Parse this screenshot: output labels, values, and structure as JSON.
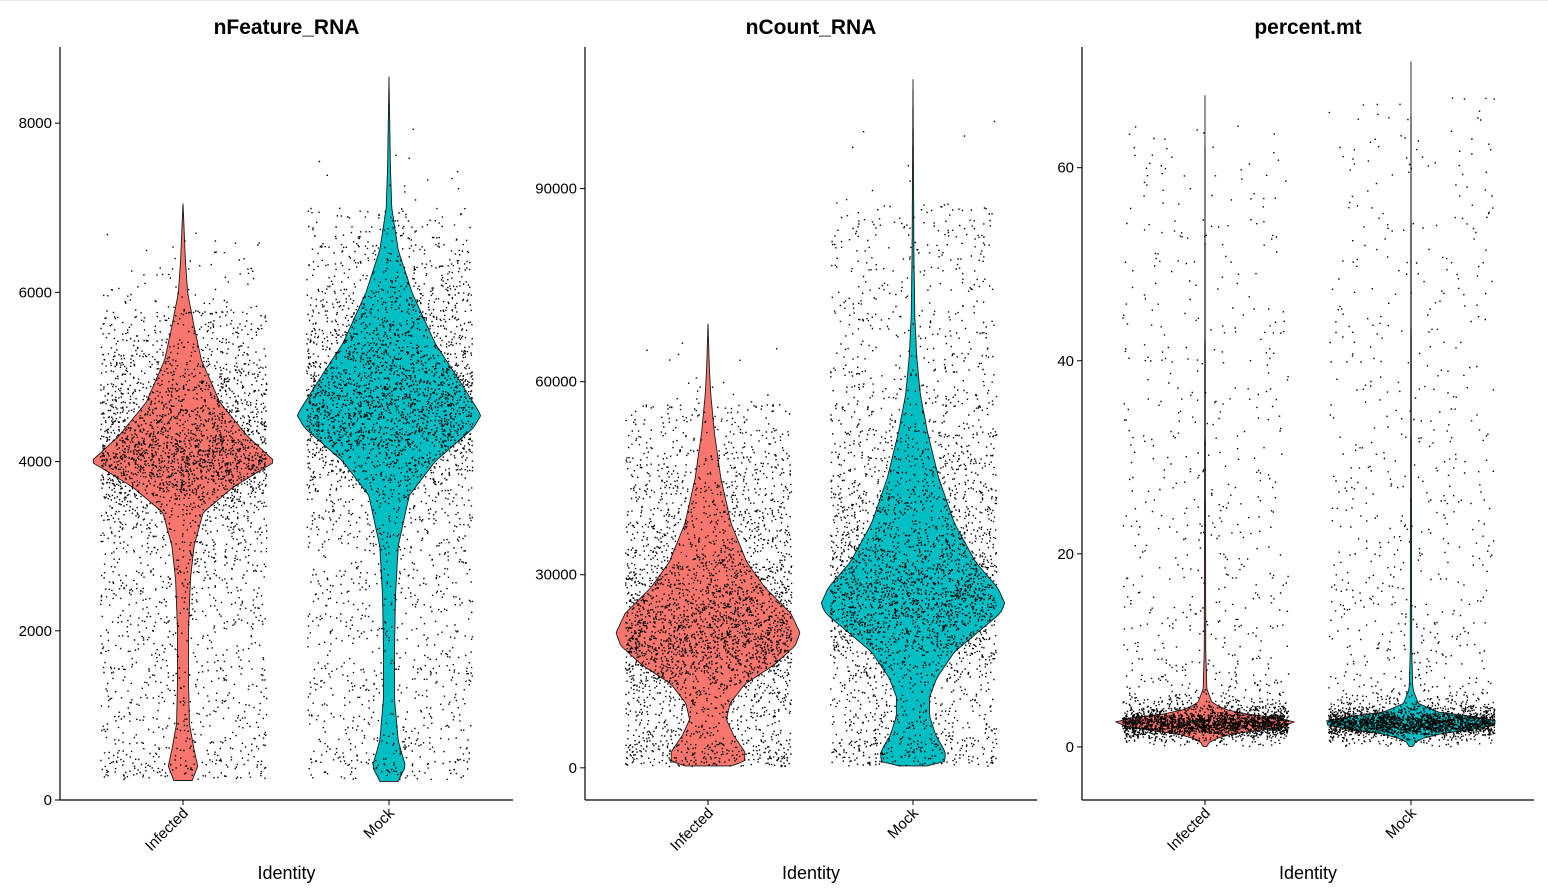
{
  "colors": {
    "Infected": "#F8766D",
    "Mock": "#00BFC4",
    "points": "#000000",
    "axis": "#000000"
  },
  "chart_data": [
    {
      "type": "violin",
      "title": "nFeature_RNA",
      "xlabel": "Identity",
      "ylabel": "",
      "categories": [
        "Infected",
        "Mock"
      ],
      "ylim": [
        0,
        8900
      ],
      "yticks": [
        0,
        2000,
        4000,
        6000,
        8000
      ],
      "points_ymin": 250,
      "series": [
        {
          "name": "Infected",
          "min": 230,
          "max": 7050,
          "profile": [
            [
              230,
              0.1
            ],
            [
              400,
              0.16
            ],
            [
              600,
              0.12
            ],
            [
              900,
              0.07
            ],
            [
              1400,
              0.06
            ],
            [
              2000,
              0.06
            ],
            [
              2600,
              0.08
            ],
            [
              3000,
              0.12
            ],
            [
              3400,
              0.22
            ],
            [
              3700,
              0.55
            ],
            [
              4000,
              1.0
            ],
            [
              4300,
              0.7
            ],
            [
              4700,
              0.4
            ],
            [
              5200,
              0.2
            ],
            [
              5600,
              0.12
            ],
            [
              6000,
              0.05
            ],
            [
              6400,
              0.025
            ],
            [
              7050,
              0.0
            ]
          ]
        },
        {
          "name": "Mock",
          "min": 220,
          "max": 8550,
          "profile": [
            [
              220,
              0.1
            ],
            [
              400,
              0.18
            ],
            [
              700,
              0.1
            ],
            [
              1200,
              0.06
            ],
            [
              1800,
              0.06
            ],
            [
              2400,
              0.07
            ],
            [
              3000,
              0.1
            ],
            [
              3600,
              0.22
            ],
            [
              4000,
              0.5
            ],
            [
              4400,
              0.92
            ],
            [
              4550,
              1.0
            ],
            [
              4900,
              0.8
            ],
            [
              5400,
              0.5
            ],
            [
              6000,
              0.25
            ],
            [
              6500,
              0.1
            ],
            [
              7000,
              0.03
            ],
            [
              7500,
              0.015
            ],
            [
              8550,
              0.0
            ]
          ]
        }
      ]
    },
    {
      "type": "violin",
      "title": "nCount_RNA",
      "xlabel": "Identity",
      "ylabel": "",
      "categories": [
        "Infected",
        "Mock"
      ],
      "ylim": [
        -5000,
        112000
      ],
      "yticks": [
        0,
        30000,
        60000,
        90000
      ],
      "points_ymin": 300,
      "series": [
        {
          "name": "Infected",
          "min": 300,
          "max": 69000,
          "profile": [
            [
              300,
              0.25
            ],
            [
              1000,
              0.4
            ],
            [
              2500,
              0.4
            ],
            [
              5000,
              0.28
            ],
            [
              7500,
              0.2
            ],
            [
              10000,
              0.24
            ],
            [
              13000,
              0.4
            ],
            [
              16000,
              0.72
            ],
            [
              19000,
              0.95
            ],
            [
              21000,
              1.0
            ],
            [
              24000,
              0.9
            ],
            [
              28000,
              0.62
            ],
            [
              32000,
              0.42
            ],
            [
              38000,
              0.25
            ],
            [
              45000,
              0.14
            ],
            [
              52000,
              0.07
            ],
            [
              58000,
              0.03
            ],
            [
              62000,
              0.015
            ],
            [
              69000,
              0.0
            ]
          ]
        },
        {
          "name": "Mock",
          "min": 300,
          "max": 107000,
          "profile": [
            [
              300,
              0.15
            ],
            [
              1000,
              0.35
            ],
            [
              2500,
              0.35
            ],
            [
              5000,
              0.25
            ],
            [
              8000,
              0.18
            ],
            [
              11000,
              0.18
            ],
            [
              14000,
              0.26
            ],
            [
              18000,
              0.45
            ],
            [
              21000,
              0.7
            ],
            [
              24000,
              0.95
            ],
            [
              25500,
              1.0
            ],
            [
              28000,
              0.92
            ],
            [
              32000,
              0.68
            ],
            [
              38000,
              0.45
            ],
            [
              45000,
              0.28
            ],
            [
              52000,
              0.16
            ],
            [
              58000,
              0.08
            ],
            [
              64000,
              0.04
            ],
            [
              70000,
              0.02
            ],
            [
              80000,
              0.01
            ],
            [
              107000,
              0.0
            ]
          ]
        }
      ]
    },
    {
      "type": "violin",
      "title": "percent.mt",
      "xlabel": "Identity",
      "ylabel": "",
      "categories": [
        "Infected",
        "Mock"
      ],
      "ylim": [
        -5.5,
        72.5
      ],
      "yticks": [
        0,
        20,
        40,
        60
      ],
      "points_ymin": 0.1,
      "series": [
        {
          "name": "Infected",
          "min": 0.05,
          "max": 67.5,
          "profile": [
            [
              0.05,
              0.02
            ],
            [
              0.5,
              0.05
            ],
            [
              1.2,
              0.2
            ],
            [
              2.0,
              0.8
            ],
            [
              2.5,
              1.0
            ],
            [
              3.0,
              0.8
            ],
            [
              3.6,
              0.3
            ],
            [
              4.5,
              0.08
            ],
            [
              6.0,
              0.02
            ],
            [
              10,
              0.008
            ],
            [
              30,
              0.004
            ],
            [
              67.5,
              0.0
            ]
          ]
        },
        {
          "name": "Mock",
          "min": 0.05,
          "max": 71,
          "profile": [
            [
              0.05,
              0.02
            ],
            [
              0.5,
              0.05
            ],
            [
              1.2,
              0.2
            ],
            [
              2.0,
              0.8
            ],
            [
              2.5,
              1.0
            ],
            [
              3.0,
              0.8
            ],
            [
              3.6,
              0.3
            ],
            [
              4.5,
              0.08
            ],
            [
              6.0,
              0.02
            ],
            [
              10,
              0.008
            ],
            [
              30,
              0.004
            ],
            [
              71,
              0.0
            ]
          ]
        }
      ]
    }
  ]
}
